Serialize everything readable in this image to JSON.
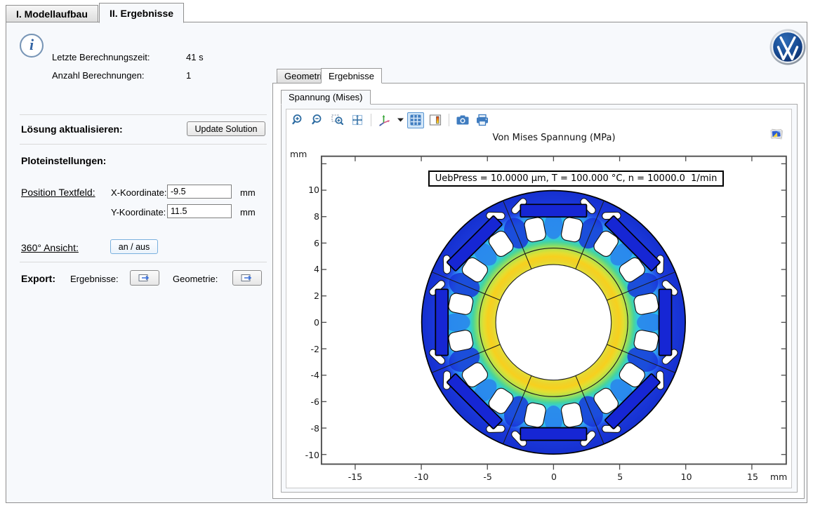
{
  "app": {
    "main_tabs": [
      {
        "label": "I. Modellaufbau"
      },
      {
        "label": "II. Ergebnisse"
      }
    ]
  },
  "left_panel": {
    "info_rows": [
      {
        "label": "Letzte Berechnungszeit:",
        "value": "41 s"
      },
      {
        "label": "Anzahl Berechnungen:",
        "value": "1"
      }
    ],
    "solution": {
      "label": "Lösung aktualisieren:",
      "button_label": "Update Solution"
    },
    "plot_settings": {
      "heading": "Ploteinstellungen:",
      "position": {
        "label": "Position Textfeld:",
        "fields": [
          {
            "label": "X-Koordinate:",
            "value": "-9.5",
            "unit": "mm"
          },
          {
            "label": "Y-Koordinate:",
            "value": "11.5",
            "unit": "mm"
          }
        ]
      },
      "view360": {
        "label": "360° Ansicht:",
        "button_label": "an / aus"
      }
    },
    "export": {
      "heading": "Export:",
      "items": [
        {
          "label": "Ergebnisse:",
          "icon": "export-icon"
        },
        {
          "label": "Geometrie:",
          "icon": "export-icon"
        }
      ]
    }
  },
  "results_panel": {
    "tabs": [
      {
        "label": "Geometrie"
      },
      {
        "label": "Ergebnisse"
      }
    ],
    "plot_tab_label": "Spannung (Mises)",
    "toolbar_icons": [
      "zoom-in",
      "zoom-out",
      "zoom-box",
      "zoom-extents",
      "view-orientation",
      "grid",
      "color-legend",
      "snapshot",
      "print"
    ],
    "plot": {
      "title": "Von Mises Spannung (MPa)",
      "annotation": "UebPress = 10.0000 μm, T = 100.000 °C, n = 10000.0  1/min",
      "x_tick_labels": [
        "-15",
        "-10",
        "-5",
        "0",
        "5",
        "10",
        "15"
      ],
      "y_tick_labels": [
        "10",
        "8",
        "6",
        "4",
        "2",
        "0",
        "-2",
        "-4",
        "-6",
        "-8",
        "-10"
      ],
      "x_unit": "mm",
      "y_unit": "mm"
    }
  },
  "branding": {
    "logo_icon": "vw-logo"
  },
  "colors": {
    "toolbar_blue": "#2d6ca2",
    "stress_low": "#1530cf",
    "stress_cyan": "#31c9ec",
    "stress_green": "#7fdc6e",
    "stress_yellow": "#f7d01e",
    "panel_bg": "#f7f9fc",
    "border_gray": "#8f8f8f",
    "active_tool_border": "#5a96d2"
  }
}
